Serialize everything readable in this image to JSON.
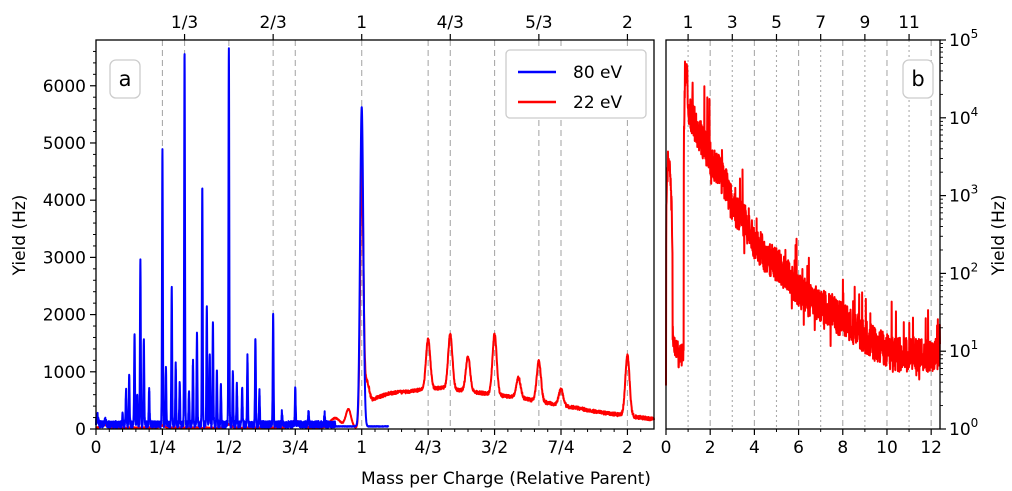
{
  "chart_data": [
    {
      "type": "line",
      "panel_label": "a",
      "xlabel": "Mass per Charge (Relative Parent)",
      "ylabel": "Yield (Hz)",
      "xlim": [
        0,
        2.1
      ],
      "ylim": [
        0,
        6800
      ],
      "x_ticks": [
        {
          "value": 0,
          "label": "0"
        },
        {
          "value": 0.25,
          "label": "1/4"
        },
        {
          "value": 0.5,
          "label": "1/2"
        },
        {
          "value": 0.75,
          "label": "3/4"
        },
        {
          "value": 1.0,
          "label": "1"
        },
        {
          "value": 1.25,
          "label": "4/3"
        },
        {
          "value": 1.5,
          "label": "3/2"
        },
        {
          "value": 1.75,
          "label": "7/4"
        },
        {
          "value": 2.0,
          "label": "2"
        }
      ],
      "top_ticks": [
        {
          "value": 0.3333,
          "label": "1/3"
        },
        {
          "value": 0.6667,
          "label": "2/3"
        },
        {
          "value": 1.0,
          "label": "1"
        },
        {
          "value": 1.3333,
          "label": "4/3"
        },
        {
          "value": 1.6667,
          "label": "5/3"
        },
        {
          "value": 2.0,
          "label": "2"
        }
      ],
      "y_ticks": [
        0,
        1000,
        2000,
        3000,
        4000,
        5000,
        6000
      ],
      "y_tick_labels": [
        "0",
        "1000",
        "2000",
        "3000",
        "4000",
        "5000",
        "6000"
      ],
      "guide_lines": [
        0.25,
        0.3333,
        0.5,
        0.6667,
        0.75,
        1.0,
        1.25,
        1.3333,
        1.5,
        1.6667,
        1.75,
        2.0
      ],
      "legend_position": "top-right",
      "series": [
        {
          "name": "80 eV",
          "color": "#0000ff",
          "baseline": 40,
          "peaks": [
            [
              0.005,
              150,
              0.003
            ],
            [
              0.035,
              60,
              0.004
            ],
            [
              0.1,
              180,
              0.0015
            ],
            [
              0.113,
              620,
              0.0015
            ],
            [
              0.125,
              850,
              0.0015
            ],
            [
              0.145,
              1560,
              0.0015
            ],
            [
              0.155,
              500,
              0.0015
            ],
            [
              0.167,
              2880,
              0.0015
            ],
            [
              0.18,
              1450,
              0.0015
            ],
            [
              0.2,
              650,
              0.0015
            ],
            [
              0.25,
              4780,
              0.0015
            ],
            [
              0.263,
              1000,
              0.0015
            ],
            [
              0.285,
              2420,
              0.0015
            ],
            [
              0.3,
              1050,
              0.0015
            ],
            [
              0.315,
              700,
              0.0015
            ],
            [
              0.3333,
              6520,
              0.0015
            ],
            [
              0.35,
              600,
              0.0015
            ],
            [
              0.365,
              1100,
              0.0015
            ],
            [
              0.38,
              1600,
              0.0015
            ],
            [
              0.4,
              4130,
              0.0015
            ],
            [
              0.417,
              2100,
              0.0015
            ],
            [
              0.428,
              1200,
              0.0015
            ],
            [
              0.44,
              1760,
              0.0015
            ],
            [
              0.455,
              900,
              0.0015
            ],
            [
              0.47,
              650,
              0.0015
            ],
            [
              0.5,
              6560,
              0.0015
            ],
            [
              0.515,
              900,
              0.0015
            ],
            [
              0.53,
              700,
              0.0015
            ],
            [
              0.55,
              650,
              0.0015
            ],
            [
              0.57,
              1180,
              0.0015
            ],
            [
              0.6,
              1510,
              0.0015
            ],
            [
              0.615,
              560,
              0.0015
            ],
            [
              0.6667,
              1930,
              0.0015
            ],
            [
              0.7,
              230,
              0.0015
            ],
            [
              0.75,
              620,
              0.0015
            ],
            [
              0.8,
              220,
              0.0015
            ],
            [
              0.86,
              200,
              0.0015
            ],
            [
              1.0,
              5580,
              0.006
            ]
          ],
          "x_range": [
            0,
            1.1
          ]
        },
        {
          "name": "22 eV",
          "color": "#ff0000",
          "baseline": 0,
          "peaks": [
            [
              0.03,
              60,
              0.01
            ],
            [
              0.25,
              40,
              0.01
            ],
            [
              0.5,
              60,
              0.01
            ],
            [
              0.75,
              120,
              0.02
            ],
            [
              0.9,
              170,
              0.02
            ],
            [
              0.95,
              320,
              0.01
            ],
            [
              1.0,
              4260,
              0.006
            ],
            [
              1.02,
              350,
              0.008
            ],
            [
              1.25,
              880,
              0.008
            ],
            [
              1.3333,
              950,
              0.008
            ],
            [
              1.4,
              610,
              0.008
            ],
            [
              1.5,
              1060,
              0.008
            ],
            [
              1.59,
              350,
              0.008
            ],
            [
              1.6667,
              700,
              0.008
            ],
            [
              1.75,
              280,
              0.008
            ],
            [
              2.0,
              1060,
              0.008
            ]
          ],
          "continuum": [
            [
              1.0,
              420
            ],
            [
              1.1,
              600
            ],
            [
              1.3,
              700
            ],
            [
              1.6,
              520
            ],
            [
              1.9,
              270
            ],
            [
              2.1,
              150
            ]
          ],
          "x_range": [
            0,
            2.1
          ]
        }
      ]
    },
    {
      "type": "line",
      "panel_label": "b",
      "ylabel": "Yield (Hz)",
      "y_scale": "log",
      "xlim": [
        0,
        12.4
      ],
      "ylim": [
        1,
        100000
      ],
      "x_ticks": [
        {
          "value": 0,
          "label": "0"
        },
        {
          "value": 2,
          "label": "2"
        },
        {
          "value": 4,
          "label": "4"
        },
        {
          "value": 6,
          "label": "6"
        },
        {
          "value": 8,
          "label": "8"
        },
        {
          "value": 10,
          "label": "10"
        },
        {
          "value": 12,
          "label": "12"
        }
      ],
      "top_ticks": [
        {
          "value": 1,
          "label": "1"
        },
        {
          "value": 3,
          "label": "3"
        },
        {
          "value": 5,
          "label": "5"
        },
        {
          "value": 7,
          "label": "7"
        },
        {
          "value": 9,
          "label": "9"
        },
        {
          "value": 11,
          "label": "11"
        }
      ],
      "y_ticks": [
        {
          "value": 1,
          "base": "10",
          "exp": "0"
        },
        {
          "value": 10,
          "base": "10",
          "exp": "1"
        },
        {
          "value": 100,
          "base": "10",
          "exp": "2"
        },
        {
          "value": 1000,
          "base": "10",
          "exp": "3"
        },
        {
          "value": 10000,
          "base": "10",
          "exp": "4"
        },
        {
          "value": 100000,
          "base": "10",
          "exp": "5"
        }
      ],
      "guide_lines": [
        1,
        2,
        3,
        4,
        5,
        6,
        7,
        8,
        9,
        10,
        11,
        12
      ],
      "series": [
        {
          "name": "22 eV",
          "color": "#ff0000",
          "points": [
            [
              0.0,
              5
            ],
            [
              0.1,
              3000
            ],
            [
              0.3,
              15
            ],
            [
              0.6,
              8
            ],
            [
              0.8,
              10
            ],
            [
              0.92,
              50000
            ],
            [
              1.0,
              12000
            ],
            [
              1.5,
              6000
            ],
            [
              2.0,
              3000
            ],
            [
              2.5,
              1800
            ],
            [
              3.0,
              700
            ],
            [
              3.5,
              480
            ],
            [
              4.0,
              250
            ],
            [
              4.5,
              170
            ],
            [
              5.0,
              130
            ],
            [
              5.5,
              90
            ],
            [
              6.0,
              60
            ],
            [
              6.5,
              45
            ],
            [
              7.0,
              40
            ],
            [
              7.5,
              30
            ],
            [
              8.0,
              25
            ],
            [
              8.5,
              20
            ],
            [
              9.0,
              15
            ],
            [
              9.5,
              12
            ],
            [
              10.0,
              10
            ],
            [
              10.5,
              9
            ],
            [
              11.0,
              9
            ],
            [
              11.5,
              9
            ],
            [
              12.0,
              9
            ],
            [
              12.4,
              10
            ]
          ]
        }
      ]
    }
  ]
}
